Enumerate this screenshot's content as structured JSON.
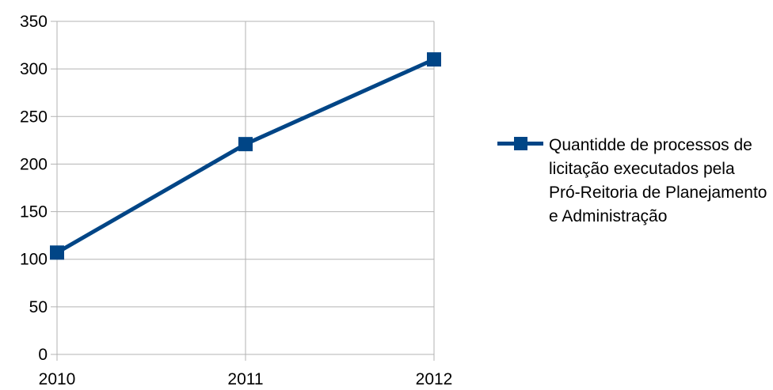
{
  "chart_data": {
    "type": "line",
    "categories": [
      "2010",
      "2011",
      "2012"
    ],
    "series": [
      {
        "name": "Quantidde de processos de licitação executados pela Pró-Reitoria de Planejamento e Administração",
        "values": [
          107,
          221,
          310
        ],
        "color": "#004586"
      }
    ],
    "yticks": [
      "0",
      "50",
      "100",
      "150",
      "200",
      "250",
      "300",
      "350"
    ],
    "ylim": [
      0,
      350
    ],
    "grid": true,
    "legend_position": "right",
    "title": "",
    "xlabel": "",
    "ylabel": ""
  }
}
